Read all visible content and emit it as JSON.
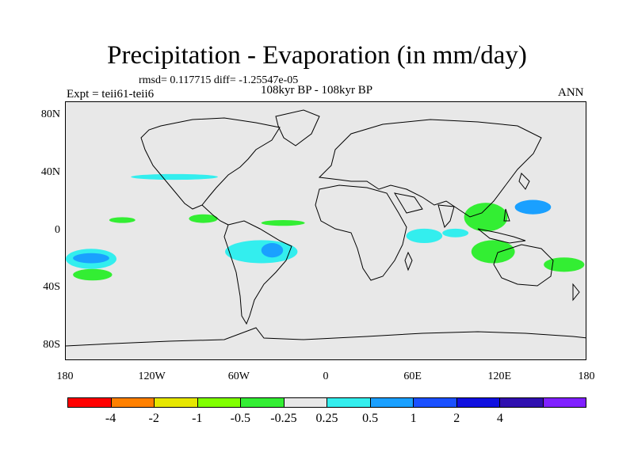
{
  "title": "Precipitation - Evaporation (in mm/day)",
  "stats": "rmsd= 0.117715 diff= -1.25547e-05",
  "experiment": "Expt = teii61-teii6",
  "period": "108kyr BP - 108kyr BP",
  "season": "ANN",
  "map": {
    "projection": "cylindrical equidistant",
    "lon_range": [
      -180,
      180
    ],
    "lat_range": [
      -90,
      90
    ],
    "background_color": "#e8e8e8",
    "y_ticks": [
      {
        "label": "80N",
        "lat": 80
      },
      {
        "label": "40N",
        "lat": 40
      },
      {
        "label": "0",
        "lat": 0
      },
      {
        "label": "40S",
        "lat": -40
      },
      {
        "label": "80S",
        "lat": -80
      }
    ],
    "x_ticks": [
      {
        "label": "180",
        "lon": -180
      },
      {
        "label": "120W",
        "lon": -120
      },
      {
        "label": "60W",
        "lon": -60
      },
      {
        "label": "0",
        "lon": 0
      },
      {
        "label": "60E",
        "lon": 60
      },
      {
        "label": "120E",
        "lon": 120
      },
      {
        "label": "180",
        "lon": 180
      }
    ]
  },
  "colorbar": {
    "colors": [
      "#ff0000",
      "#ff8000",
      "#e6e600",
      "#80ff00",
      "#33ee33",
      "#e8e8e8",
      "#33eeee",
      "#1aa0ff",
      "#1a50ff",
      "#1010e0",
      "#3010b0",
      "#8020ff"
    ],
    "labels": [
      "-4",
      "-2",
      "-1",
      "-0.5",
      "-0.25",
      "0.25",
      "0.5",
      "1",
      "2",
      "4"
    ]
  },
  "anomaly_regions": [
    {
      "value_class": "0.5",
      "color": "#33eeee",
      "lon": [
        -135,
        -75
      ],
      "lat": [
        40,
        36
      ]
    },
    {
      "value_class": "-0.25",
      "color": "#33ee33",
      "lon": [
        -150,
        -132
      ],
      "lat": [
        10,
        6
      ]
    },
    {
      "value_class": "-0.25",
      "color": "#33ee33",
      "lon": [
        -95,
        -75
      ],
      "lat": [
        12,
        6
      ]
    },
    {
      "value_class": "-0.25",
      "color": "#33ee33",
      "lon": [
        -45,
        -15
      ],
      "lat": [
        8,
        4
      ]
    },
    {
      "value_class": "0.5",
      "color": "#33eeee",
      "lon": [
        -70,
        -20
      ],
      "lat": [
        -6,
        -22
      ]
    },
    {
      "value_class": "1",
      "color": "#1aa0ff",
      "lon": [
        -45,
        -30
      ],
      "lat": [
        -8,
        -18
      ]
    },
    {
      "value_class": "0.5",
      "color": "#33eeee",
      "lon": [
        -180,
        -145
      ],
      "lat": [
        -12,
        -26
      ]
    },
    {
      "value_class": "1",
      "color": "#1aa0ff",
      "lon": [
        -175,
        -150
      ],
      "lat": [
        -15,
        -22
      ]
    },
    {
      "value_class": "-0.25",
      "color": "#33ee33",
      "lon": [
        -175,
        -148
      ],
      "lat": [
        -26,
        -34
      ]
    },
    {
      "value_class": "0.5",
      "color": "#33eeee",
      "lon": [
        55,
        80
      ],
      "lat": [
        2,
        -8
      ]
    },
    {
      "value_class": "0.5",
      "color": "#33eeee",
      "lon": [
        80,
        98
      ],
      "lat": [
        2,
        -4
      ]
    },
    {
      "value_class": "-0.25",
      "color": "#33ee33",
      "lon": [
        95,
        125
      ],
      "lat": [
        20,
        0
      ]
    },
    {
      "value_class": "1",
      "color": "#1aa0ff",
      "lon": [
        130,
        155
      ],
      "lat": [
        22,
        12
      ]
    },
    {
      "value_class": "-0.25",
      "color": "#33ee33",
      "lon": [
        100,
        130
      ],
      "lat": [
        -6,
        -22
      ]
    },
    {
      "value_class": "-0.25",
      "color": "#33ee33",
      "lon": [
        150,
        178
      ],
      "lat": [
        -18,
        -28
      ]
    }
  ]
}
